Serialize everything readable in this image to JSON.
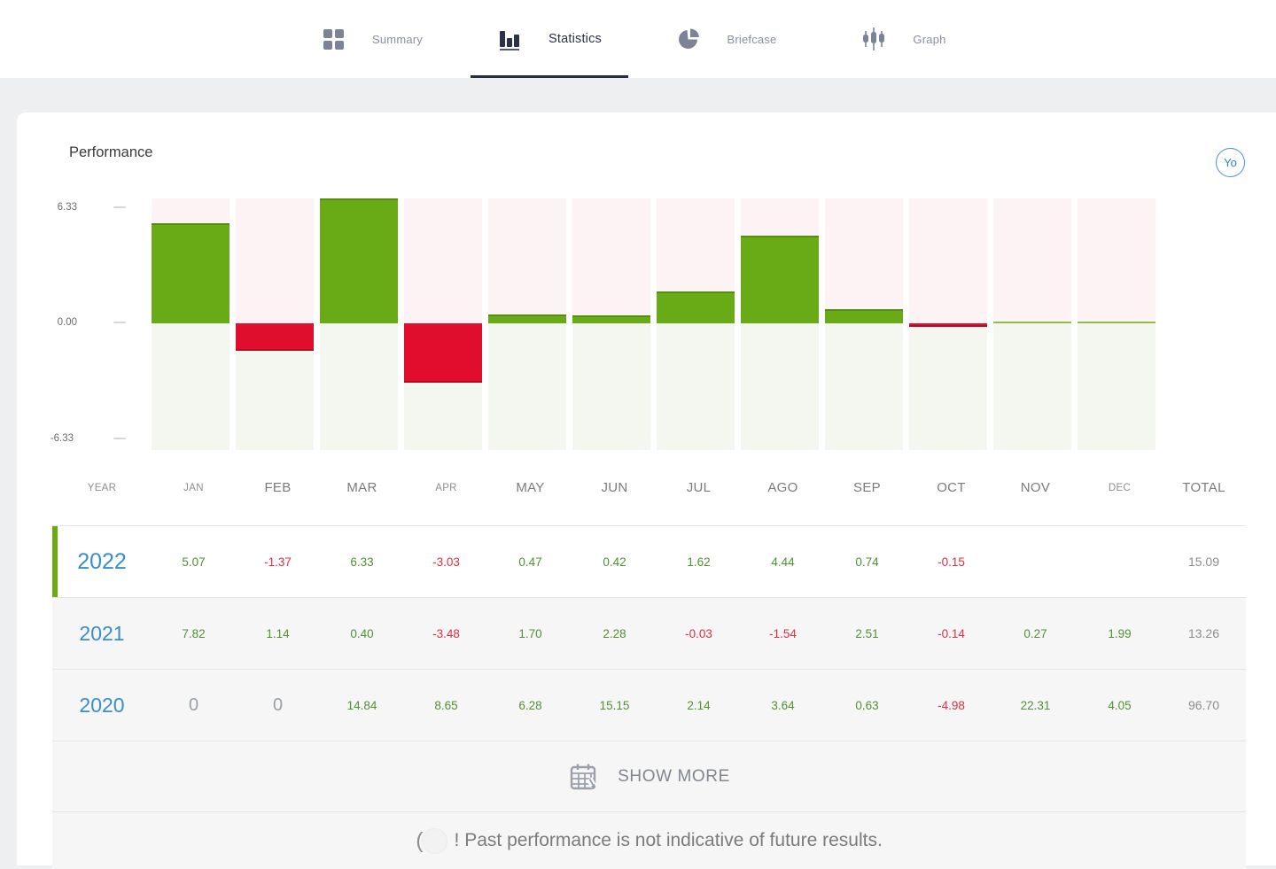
{
  "nav": {
    "tabs": [
      {
        "label": "Summary",
        "icon": "grid-icon",
        "active": false
      },
      {
        "label": "Statistics",
        "icon": "bar-chart-icon",
        "active": true
      },
      {
        "label": "Briefcase",
        "icon": "pie-chart-icon",
        "active": false
      },
      {
        "label": "Graph",
        "icon": "candlestick-icon",
        "active": false
      }
    ]
  },
  "performance": {
    "title": "Performance",
    "period_button": "Yo"
  },
  "chart_data": {
    "type": "bar",
    "title": "Performance",
    "categories": [
      "JAN",
      "FEB",
      "MAR",
      "APR",
      "MAY",
      "JUN",
      "JUL",
      "AGO",
      "SEP",
      "OCT",
      "NOV",
      "DEC"
    ],
    "values": [
      5.07,
      -1.37,
      6.33,
      -3.03,
      0.47,
      0.42,
      1.62,
      4.44,
      0.74,
      -0.15,
      0,
      0
    ],
    "ylim": [
      -6.33,
      6.33
    ],
    "yticks": [
      "6.33",
      "0.00",
      "-6.33"
    ],
    "xlabel": "",
    "ylabel": "",
    "legend": "none",
    "grid": false,
    "positive_color": "#69aa17",
    "negative_color": "#e00d2d"
  },
  "table": {
    "headers": [
      "YEAR",
      "JAN",
      "FEB",
      "MAR",
      "APR",
      "MAY",
      "JUN",
      "JUL",
      "AGO",
      "SEP",
      "OCT",
      "NOV",
      "DEC",
      "TOTAL"
    ],
    "rows": [
      {
        "year": "2022",
        "values": [
          "5.07",
          "-1.37",
          "6.33",
          "-3.03",
          "0.47",
          "0.42",
          "1.62",
          "4.44",
          "0.74",
          "-0.15",
          "",
          ""
        ],
        "total": "15.09"
      },
      {
        "year": "2021",
        "values": [
          "7.82",
          "1.14",
          "0.40",
          "-3.48",
          "1.70",
          "2.28",
          "-0.03",
          "-1.54",
          "2.51",
          "-0.14",
          "0.27",
          "1.99"
        ],
        "total": "13.26"
      },
      {
        "year": "2020",
        "values": [
          "0",
          "0",
          "14.84",
          "8.65",
          "6.28",
          "15.15",
          "2.14",
          "3.64",
          "0.63",
          "-4.98",
          "22.31",
          "4.05"
        ],
        "total": "96.70"
      }
    ],
    "show_more_label": "SHOW MORE"
  },
  "footer": {
    "prefix": "(",
    "disclaimer": "! Past performance is not indicative of future results."
  }
}
